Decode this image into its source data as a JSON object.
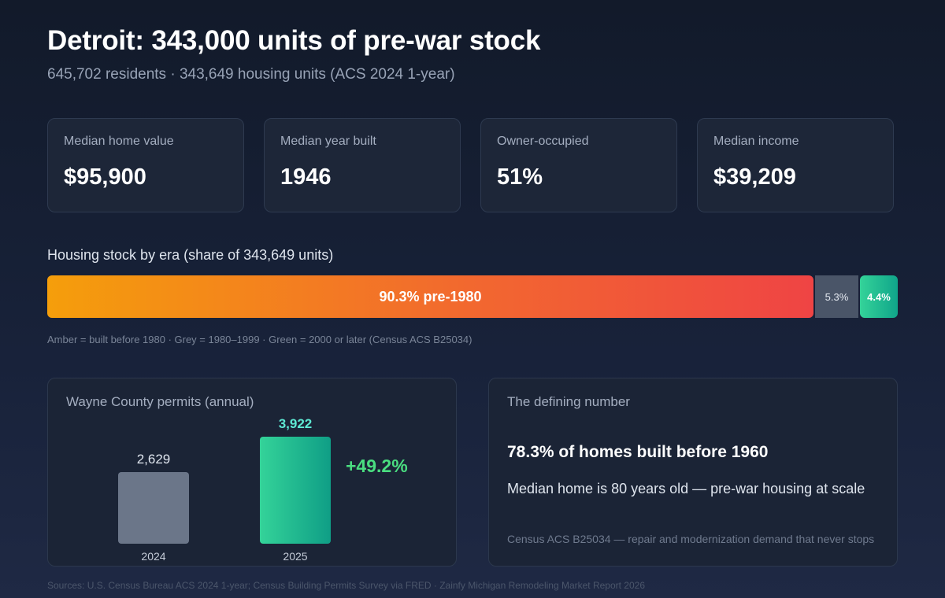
{
  "header": {
    "title": "Detroit: 343,000 units of pre-war stock",
    "subtitle": "645,702 residents · 343,649 housing units (ACS 2024 1-year)"
  },
  "kpis": [
    {
      "label": "Median home value",
      "value": "$95,900"
    },
    {
      "label": "Median year built",
      "value": "1946"
    },
    {
      "label": "Owner-occupied",
      "value": "51%"
    },
    {
      "label": "Median income",
      "value": "$39,209"
    }
  ],
  "era": {
    "title": "Housing stock by era (share of 343,649 units)",
    "segments": [
      {
        "label": "90.3% pre-1980",
        "value": 90.3,
        "color": "#f59e0b"
      },
      {
        "label": "5.3%",
        "value": 5.3,
        "color": "#4a5568"
      },
      {
        "label": "4.4%",
        "value": 4.4,
        "color": "#34d399"
      }
    ],
    "note": "Amber = built before 1980 · Grey = 1980–1999 · Green = 2000 or later (Census ACS B25034)"
  },
  "permits": {
    "title": "Wayne County permits (annual)",
    "growth": "+49.2%"
  },
  "defining": {
    "title": "The defining number",
    "headline": "78.3% of homes built before 1960",
    "detail": "Median home is 80 years old — pre-war housing at scale",
    "note": "Census ACS B25034 — repair and modernization demand that never stops"
  },
  "footer": {
    "sources": "Sources: U.S. Census Bureau ACS 2024 1-year; Census Building Permits Survey via FRED · Zainfy Michigan Remodeling Market Report 2026"
  },
  "chart_data": [
    {
      "type": "bar",
      "stacked": true,
      "orientation": "horizontal",
      "title": "Housing stock by era (share of 343,649 units)",
      "categories": [
        "Housing stock"
      ],
      "series": [
        {
          "name": "pre-1980",
          "values": [
            90.3
          ]
        },
        {
          "values": [
            5.3
          ]
        },
        {
          "values": [
            4.4
          ]
        }
      ],
      "xlim": [
        0,
        100
      ]
    },
    {
      "type": "bar",
      "title": "Wayne County permits (annual)",
      "categories": [
        "2024",
        "2025"
      ],
      "values": [
        2629,
        3922
      ],
      "data_labels": [
        "2,629",
        "3,922"
      ],
      "annotation": "+49.2%"
    }
  ]
}
